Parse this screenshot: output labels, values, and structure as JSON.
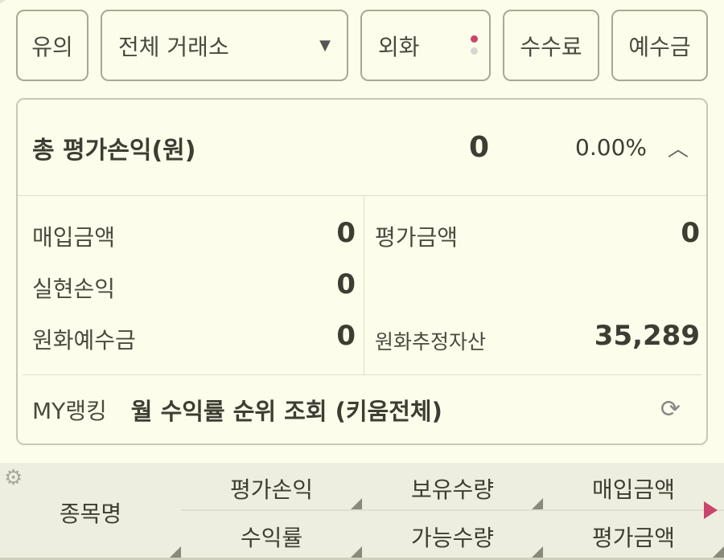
{
  "toolbar": {
    "caution": "유의",
    "exchange": "전체 거래소",
    "foreign": "외화",
    "fee": "수수료",
    "deposit": "예수금",
    "colors": {
      "dot_active": "#c9456c",
      "dot_inactive": "#d8d8d0"
    }
  },
  "summary": {
    "title": "총 평가손익(원)",
    "value": "0",
    "rate": "0.00%"
  },
  "details": {
    "purchase_label": "매입금액",
    "purchase_value": "0",
    "eval_label": "평가금액",
    "eval_value": "0",
    "realized_label": "실현손익",
    "realized_value": "0",
    "krw_deposit_label": "원화예수금",
    "krw_deposit_value": "0",
    "krw_assets_label": "원화추정자산",
    "krw_assets_value": "35,289"
  },
  "ranking": {
    "label": "MY랭킹",
    "text": "월 수익률 순위 조회 (키움전체)"
  },
  "table_header": {
    "name": "종목명",
    "col1_top": "평가손익",
    "col1_bottom": "수익률",
    "col2_top": "보유수량",
    "col2_bottom": "가능수량",
    "col3_top": "매입금액",
    "col3_bottom": "평가금액"
  }
}
